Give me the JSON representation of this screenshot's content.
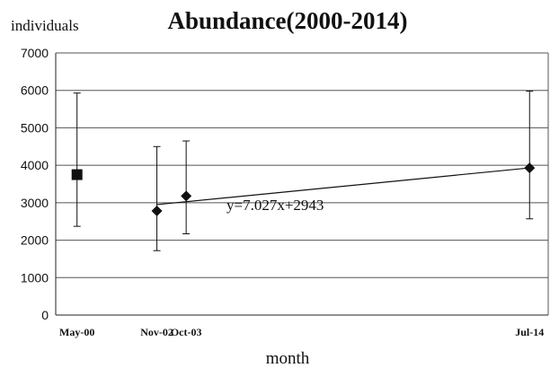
{
  "chart_data": {
    "type": "scatter",
    "title": "Abundance(2000-2014)",
    "ylabel": "individuals",
    "xlabel": "month",
    "ylim": [
      0,
      7000
    ],
    "yticks": [
      0,
      1000,
      2000,
      3000,
      4000,
      5000,
      6000,
      7000
    ],
    "x_is_date": true,
    "x_ticks": [
      {
        "label": "May-00",
        "date": "2000-05"
      },
      {
        "label": "Nov-02",
        "date": "2002-11"
      },
      {
        "label": "Oct-03",
        "date": "2003-10"
      },
      {
        "label": "Jul-14",
        "date": "2014-07"
      }
    ],
    "points": [
      {
        "x": "2000-05",
        "y": 3750,
        "err_low": 2370,
        "err_high": 5930,
        "marker": "square"
      },
      {
        "x": "2002-11",
        "y": 2780,
        "err_low": 1720,
        "err_high": 4500,
        "marker": "diamond"
      },
      {
        "x": "2003-10",
        "y": 3180,
        "err_low": 2170,
        "err_high": 4650,
        "marker": "diamond"
      },
      {
        "x": "2014-07",
        "y": 3930,
        "err_low": 2570,
        "err_high": 5980,
        "marker": "diamond"
      }
    ],
    "trendline": {
      "label": "y=7.027x+2943",
      "from": {
        "x": "2002-11",
        "y": 2950
      },
      "to": {
        "x": "2014-07",
        "y": 3930
      }
    },
    "grid": true,
    "legend": "none"
  }
}
